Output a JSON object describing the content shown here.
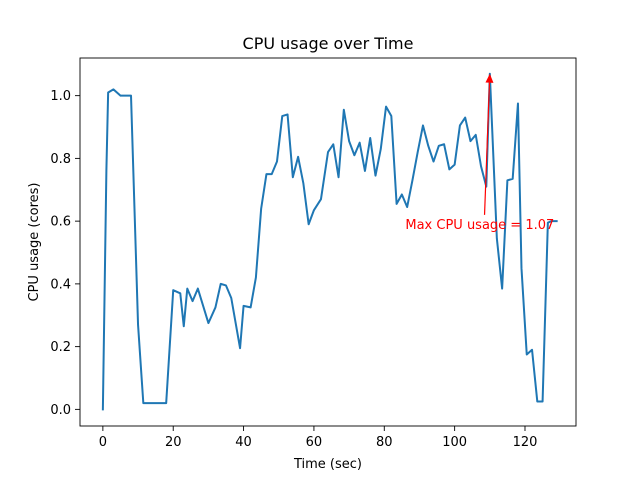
{
  "chart_data": {
    "type": "line",
    "title": "CPU usage over Time",
    "xlabel": "Time (sec)",
    "ylabel": "CPU usage (cores)",
    "xlim": [
      -6.5,
      134.5
    ],
    "ylim": [
      -0.053,
      1.12
    ],
    "xticks": [
      0,
      20,
      40,
      60,
      80,
      100,
      120
    ],
    "xtick_labels": [
      "0",
      "20",
      "40",
      "60",
      "80",
      "100",
      "120"
    ],
    "yticks": [
      0.0,
      0.2,
      0.4,
      0.6,
      0.8,
      1.0
    ],
    "ytick_labels": [
      "0.0",
      "0.2",
      "0.4",
      "0.6",
      "0.8",
      "1.0"
    ],
    "grid": false,
    "series": [
      {
        "color": "#1f77b4",
        "x": [
          0,
          1,
          1.5,
          3,
          5,
          8,
          10,
          11.5,
          14,
          18,
          20,
          22,
          23,
          24,
          25.5,
          27,
          30,
          32,
          33.5,
          35,
          36.5,
          39,
          40,
          42,
          43.5,
          45,
          46.5,
          48,
          49.5,
          51,
          52.5,
          54,
          55.5,
          57,
          58.5,
          60,
          62,
          64,
          65.5,
          67,
          68.5,
          70,
          71.5,
          73,
          74.5,
          76,
          77.5,
          79,
          80.5,
          82,
          83.5,
          85,
          86.5,
          88,
          89.5,
          91,
          92.5,
          94,
          95.5,
          97,
          98.5,
          100,
          101.5,
          103,
          104.5,
          106,
          107.5,
          109,
          110,
          112,
          113.5,
          115,
          116.5,
          118,
          119,
          120.5,
          122,
          123.5,
          125,
          126.5,
          127.5,
          129
        ],
        "y": [
          0.0,
          0.76,
          1.01,
          1.02,
          1.0,
          1.0,
          0.27,
          0.02,
          0.02,
          0.02,
          0.38,
          0.37,
          0.265,
          0.385,
          0.345,
          0.385,
          0.275,
          0.325,
          0.4,
          0.395,
          0.355,
          0.195,
          0.33,
          0.325,
          0.42,
          0.64,
          0.75,
          0.75,
          0.79,
          0.935,
          0.94,
          0.74,
          0.805,
          0.72,
          0.59,
          0.635,
          0.67,
          0.82,
          0.845,
          0.74,
          0.955,
          0.855,
          0.81,
          0.85,
          0.76,
          0.865,
          0.745,
          0.83,
          0.965,
          0.935,
          0.655,
          0.685,
          0.645,
          0.73,
          0.82,
          0.905,
          0.84,
          0.79,
          0.84,
          0.845,
          0.765,
          0.78,
          0.905,
          0.93,
          0.855,
          0.875,
          0.775,
          0.71,
          1.07,
          0.545,
          0.385,
          0.73,
          0.735,
          0.975,
          0.45,
          0.175,
          0.19,
          0.025,
          0.025,
          0.595,
          0.6,
          0.6
        ]
      }
    ],
    "annotations": [
      {
        "text": "Max CPU usage = 1.07",
        "color": "#ff0000",
        "point": [
          110,
          1.07
        ],
        "text_anchor_point": [
          86,
          0.575
        ],
        "arrow_start": [
          108.5,
          0.62
        ]
      }
    ]
  }
}
